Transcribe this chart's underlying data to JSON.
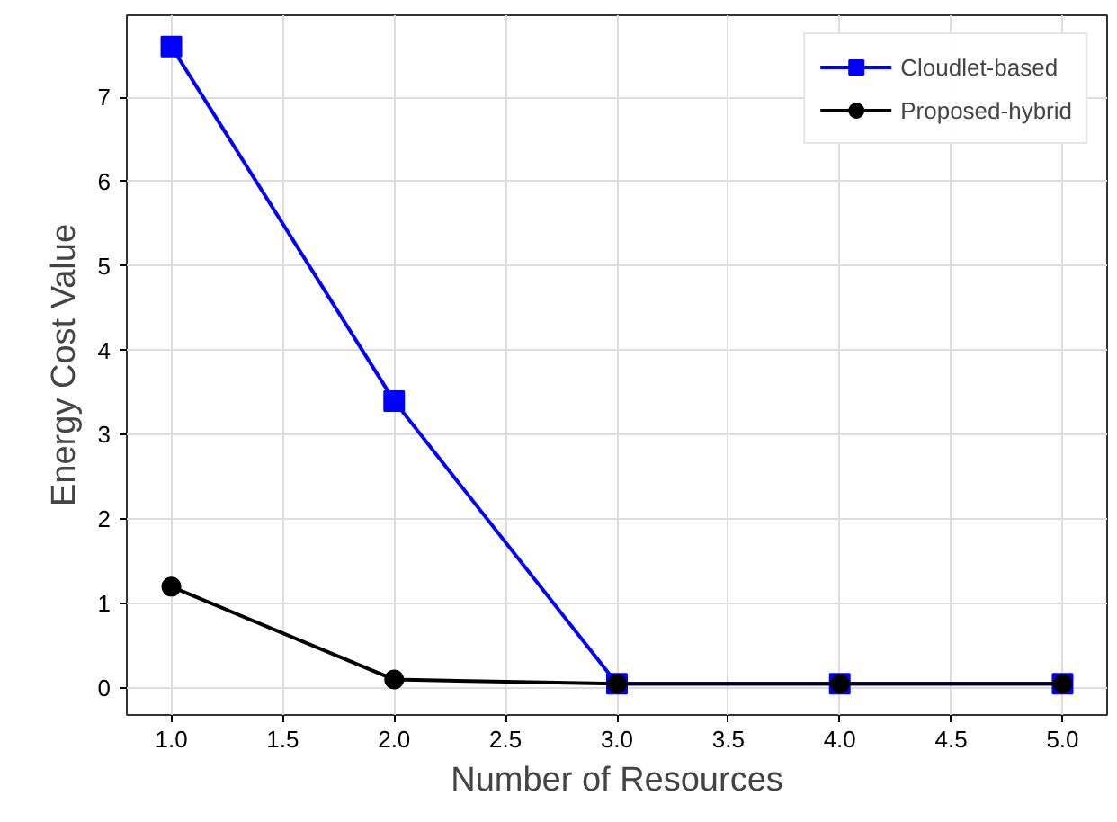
{
  "chart_data": {
    "type": "line",
    "xlabel": "Number of Resources",
    "ylabel": "Energy Cost Value",
    "x": [
      1,
      2,
      3,
      4,
      5
    ],
    "series": [
      {
        "name": "Cloudlet-based",
        "color": "#0000ff",
        "marker": "square",
        "values": [
          7.6,
          3.4,
          0.05,
          0.05,
          0.05
        ]
      },
      {
        "name": "Proposed-hybrid",
        "color": "#000000",
        "marker": "circle",
        "values": [
          1.2,
          0.1,
          0.05,
          0.05,
          0.05
        ]
      }
    ],
    "xlim": [
      0.8,
      5.2
    ],
    "ylim": [
      -0.32,
      7.97
    ],
    "xticks": [
      {
        "value": 1,
        "label": "1.0"
      },
      {
        "value": 1.5,
        "label": "1.5"
      },
      {
        "value": 2,
        "label": "2.0"
      },
      {
        "value": 2.5,
        "label": "2.5"
      },
      {
        "value": 3,
        "label": "3.0"
      },
      {
        "value": 3.5,
        "label": "3.5"
      },
      {
        "value": 4,
        "label": "4.0"
      },
      {
        "value": 4.5,
        "label": "4.5"
      },
      {
        "value": 5,
        "label": "5.0"
      }
    ],
    "yticks": [
      0,
      1,
      2,
      3,
      4,
      5,
      6,
      7
    ],
    "grid": true,
    "legend": "top right"
  }
}
